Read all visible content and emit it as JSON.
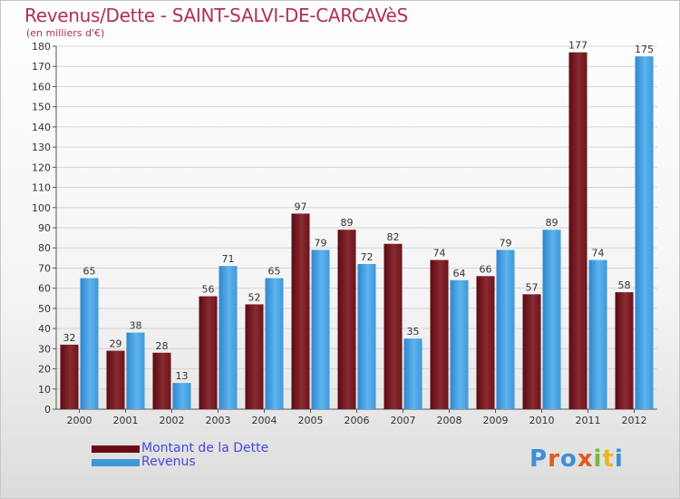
{
  "title": "Revenus/Dette - SAINT-SALVI-DE-CARCAVèS",
  "subtitle": "(en milliers d'€)",
  "logo": "Proxiti",
  "colors": {
    "dette": "#7a1f28",
    "revenus": "#4aa3e3",
    "title": "#b03050",
    "legend_text": "#4848e0"
  },
  "legend": [
    {
      "label": "Montant de la Dette",
      "color": "#6e0a14"
    },
    {
      "label": "Revenus",
      "color": "#3d96d8"
    }
  ],
  "chart_data": {
    "type": "bar",
    "categories": [
      "2000",
      "2001",
      "2002",
      "2003",
      "2004",
      "2005",
      "2006",
      "2007",
      "2008",
      "2009",
      "2010",
      "2011",
      "2012"
    ],
    "series": [
      {
        "name": "Montant de la Dette",
        "values": [
          32,
          29,
          28,
          56,
          52,
          97,
          89,
          82,
          74,
          66,
          57,
          177,
          58
        ]
      },
      {
        "name": "Revenus",
        "values": [
          65,
          38,
          13,
          71,
          65,
          79,
          72,
          35,
          64,
          79,
          89,
          74,
          175
        ]
      }
    ],
    "ylim": [
      0,
      180
    ],
    "yticks": [
      0,
      10,
      20,
      30,
      40,
      50,
      60,
      70,
      80,
      90,
      100,
      110,
      120,
      130,
      140,
      150,
      160,
      170,
      180
    ],
    "grid": true,
    "legend_position": "bottom-left"
  }
}
